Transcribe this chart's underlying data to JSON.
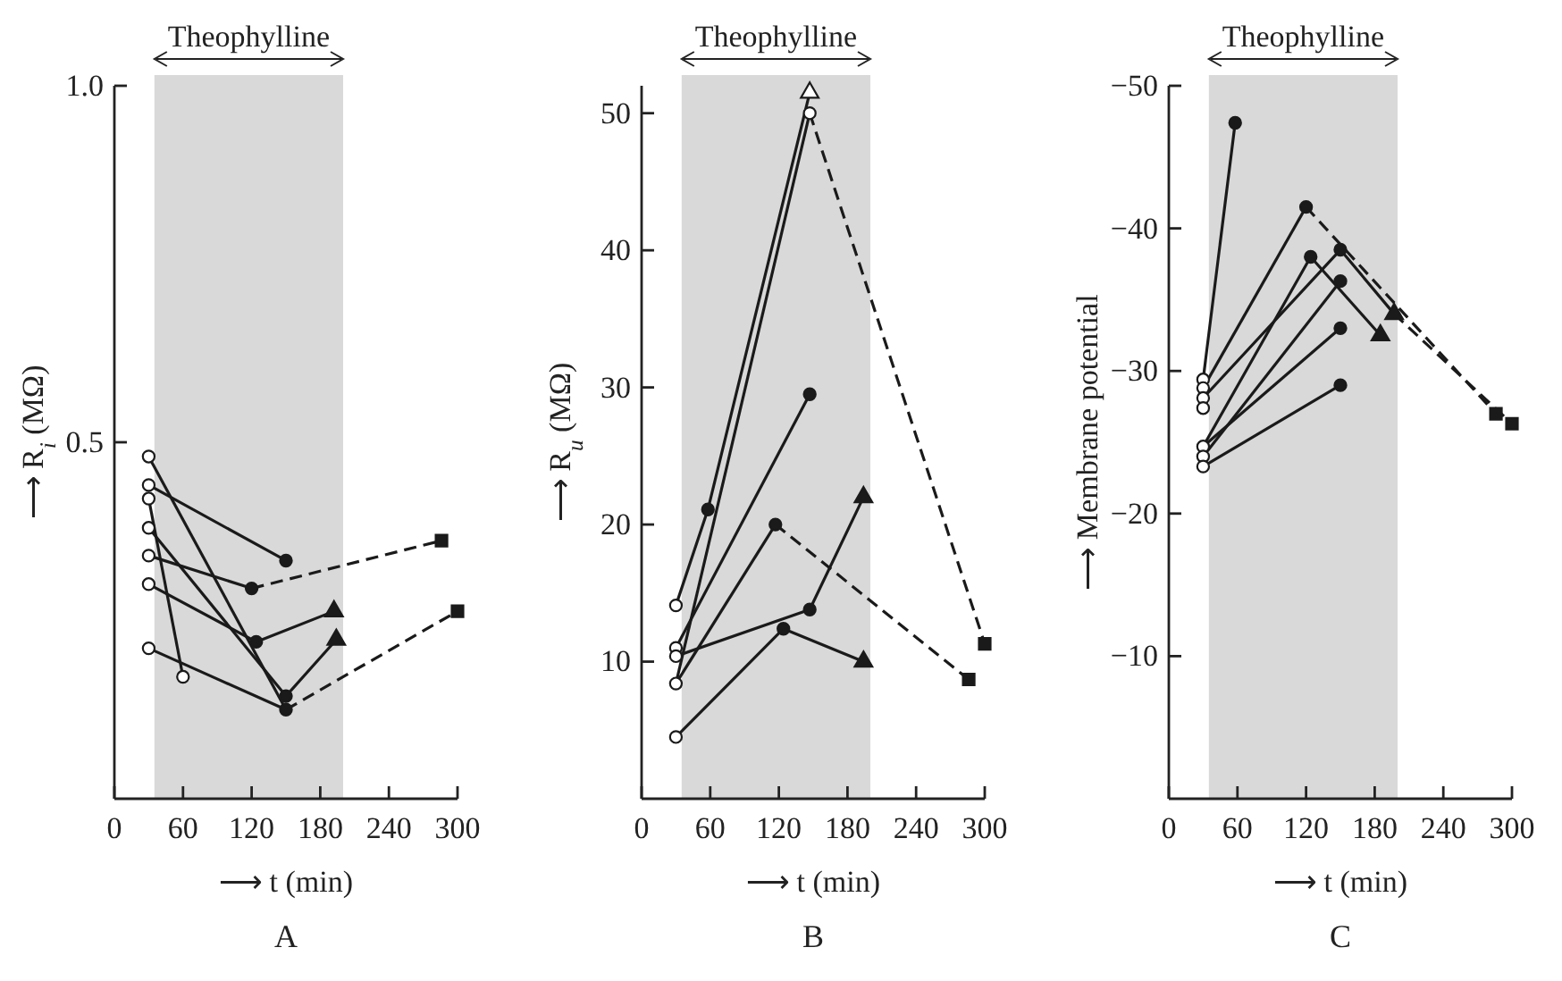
{
  "chart_data": [
    {
      "type": "line",
      "title": "A",
      "xlabel": "⟶ t  (min)",
      "ylabel": "⟶ R$_{i}$  (MΩ)",
      "xlim": [
        0,
        300
      ],
      "xticks": [
        0,
        60,
        120,
        180,
        240,
        300
      ],
      "ylim": [
        0,
        1
      ],
      "yticks": [
        0.5,
        {
          "value": 1,
          "label": "1.0"
        }
      ],
      "marker": "none",
      "line_style": "solid",
      "bands": [
        {
          "axis": "x",
          "from": 35,
          "to": 200,
          "label": "Theophylline",
          "color": "#d9d9d9"
        }
      ],
      "series": [
        {
          "color": "#1a1a1a",
          "x": [
            30,
            150
          ],
          "values": [
            0.44,
            0.334
          ]
        },
        {
          "color": "#1a1a1a",
          "x": [
            30,
            120
          ],
          "values": [
            0.341,
            0.295
          ]
        },
        {
          "color": "#1a1a1a",
          "x": [
            120,
            286
          ],
          "values": [
            0.295,
            0.362
          ],
          "line_style": "dashed"
        },
        {
          "color": "#1a1a1a",
          "x": [
            30,
            124,
            192
          ],
          "values": [
            0.301,
            0.22,
            0.263
          ]
        },
        {
          "color": "#1a1a1a",
          "x": [
            30,
            150
          ],
          "values": [
            0.48,
            0.125
          ]
        },
        {
          "color": "#1a1a1a",
          "x": [
            30,
            60
          ],
          "values": [
            0.421,
            0.171
          ]
        },
        {
          "color": "#1a1a1a",
          "x": [
            30,
            150,
            194
          ],
          "values": [
            0.38,
            0.144,
            0.223
          ]
        },
        {
          "color": "#1a1a1a",
          "x": [
            30,
            150
          ],
          "values": [
            0.211,
            0.125
          ]
        },
        {
          "color": "#1a1a1a",
          "x": [
            150,
            300
          ],
          "values": [
            0.125,
            0.263
          ],
          "line_style": "dashed"
        },
        {
          "type": "scatter",
          "marker": "circle",
          "color": "#ffffff",
          "x": [
            30,
            30,
            30,
            30,
            30,
            30,
            30,
            60
          ],
          "values": [
            0.48,
            0.44,
            0.421,
            0.38,
            0.341,
            0.301,
            0.211,
            0.171
          ]
        },
        {
          "type": "scatter",
          "marker": "circle",
          "color": "#1a1a1a",
          "x": [
            150,
            120,
            124,
            150,
            150
          ],
          "values": [
            0.334,
            0.295,
            0.22,
            0.144,
            0.125
          ]
        },
        {
          "type": "scatter",
          "marker": "triangle",
          "color": "#1a1a1a",
          "x": [
            192,
            194
          ],
          "values": [
            0.263,
            0.223
          ]
        },
        {
          "type": "scatter",
          "marker": "square",
          "color": "#1a1a1a",
          "x": [
            286,
            300
          ],
          "values": [
            0.362,
            0.263
          ]
        }
      ]
    },
    {
      "type": "line",
      "title": "B",
      "xlabel": "⟶ t  (min)",
      "ylabel": "⟶ R$_{u}$  (MΩ)",
      "xlim": [
        0,
        300
      ],
      "xticks": [
        0,
        60,
        120,
        180,
        240,
        300
      ],
      "ylim": [
        0,
        52
      ],
      "yticks": [
        10,
        20,
        30,
        40,
        50
      ],
      "marker": "none",
      "line_style": "solid",
      "bands": [
        {
          "axis": "x",
          "from": 35,
          "to": 200,
          "label": "Theophylline",
          "color": "#d9d9d9"
        }
      ],
      "series": [
        {
          "color": "#1a1a1a",
          "x": [
            30,
            58,
            147
          ],
          "values": [
            14.1,
            21.1,
            51.5
          ]
        },
        {
          "color": "#1a1a1a",
          "x": [
            30,
            147
          ],
          "values": [
            8.4,
            50
          ]
        },
        {
          "color": "#1a1a1a",
          "x": [
            147,
            300
          ],
          "values": [
            50,
            11.3
          ],
          "line_style": "dashed"
        },
        {
          "color": "#1a1a1a",
          "x": [
            30,
            147
          ],
          "values": [
            11,
            29.5
          ]
        },
        {
          "color": "#1a1a1a",
          "x": [
            30,
            117
          ],
          "values": [
            8.4,
            20
          ]
        },
        {
          "color": "#1a1a1a",
          "x": [
            117,
            286
          ],
          "values": [
            20,
            8.7
          ],
          "line_style": "dashed"
        },
        {
          "color": "#1a1a1a",
          "x": [
            30,
            147,
            194
          ],
          "values": [
            10.4,
            13.8,
            22
          ]
        },
        {
          "color": "#1a1a1a",
          "x": [
            30,
            124,
            194
          ],
          "values": [
            4.5,
            12.4,
            10
          ]
        },
        {
          "type": "scatter",
          "marker": "circle",
          "color": "#ffffff",
          "x": [
            30,
            30,
            30,
            30,
            30,
            147
          ],
          "values": [
            14.1,
            11,
            10.4,
            8.4,
            4.5,
            50
          ]
        },
        {
          "type": "scatter",
          "marker": "triangle",
          "color": "#ffffff",
          "x": [
            147
          ],
          "values": [
            51.5
          ]
        },
        {
          "type": "scatter",
          "marker": "circle",
          "color": "#1a1a1a",
          "x": [
            58,
            147,
            117,
            147,
            124
          ],
          "values": [
            21.1,
            29.5,
            20,
            13.8,
            12.4
          ]
        },
        {
          "type": "scatter",
          "marker": "triangle",
          "color": "#1a1a1a",
          "x": [
            194,
            194
          ],
          "values": [
            22,
            10
          ]
        },
        {
          "type": "scatter",
          "marker": "square",
          "color": "#1a1a1a",
          "x": [
            286,
            300
          ],
          "values": [
            8.7,
            11.3
          ]
        }
      ]
    },
    {
      "type": "line",
      "title": "C",
      "xlabel": "⟶ t  (min)",
      "ylabel": "⟶ Membrane potential",
      "xlim": [
        0,
        300
      ],
      "xticks": [
        0,
        60,
        120,
        180,
        240,
        300
      ],
      "ylim": [
        0,
        -50
      ],
      "yticks": [
        {
          "value": -10,
          "label": "−10"
        },
        {
          "value": -20,
          "label": "−20"
        },
        {
          "value": -30,
          "label": "−30"
        },
        {
          "value": -40,
          "label": "−40"
        },
        {
          "value": -50,
          "label": "−50"
        }
      ],
      "marker": "none",
      "line_style": "solid",
      "bands": [
        {
          "axis": "x",
          "from": 35,
          "to": 200,
          "label": "Theophylline",
          "color": "#d9d9d9"
        }
      ],
      "series": [
        {
          "color": "#1a1a1a",
          "x": [
            30,
            58
          ],
          "values": [
            -29.4,
            -47.4
          ]
        },
        {
          "color": "#1a1a1a",
          "x": [
            30,
            120
          ],
          "values": [
            -28.8,
            -41.5
          ]
        },
        {
          "color": "#1a1a1a",
          "x": [
            120,
            286
          ],
          "values": [
            -41.5,
            -27
          ],
          "line_style": "dashed"
        },
        {
          "color": "#1a1a1a",
          "x": [
            30,
            150,
            197
          ],
          "values": [
            -28.1,
            -38.5,
            -34
          ]
        },
        {
          "color": "#1a1a1a",
          "x": [
            197,
            300
          ],
          "values": [
            -34,
            -26.3
          ],
          "line_style": "dashed"
        },
        {
          "color": "#1a1a1a",
          "x": [
            30,
            124,
            185
          ],
          "values": [
            -24.7,
            -38,
            -32.5
          ]
        },
        {
          "color": "#1a1a1a",
          "x": [
            30,
            150
          ],
          "values": [
            -24,
            -36.3
          ]
        },
        {
          "color": "#1a1a1a",
          "x": [
            30,
            150
          ],
          "values": [
            -24.7,
            -33
          ]
        },
        {
          "color": "#1a1a1a",
          "x": [
            30,
            150
          ],
          "values": [
            -23.3,
            -29
          ]
        },
        {
          "type": "scatter",
          "marker": "circle",
          "color": "#ffffff",
          "x": [
            30,
            30,
            30,
            30,
            30,
            30,
            30
          ],
          "values": [
            -29.4,
            -28.8,
            -28.1,
            -27.4,
            -24.7,
            -24,
            -23.3
          ]
        },
        {
          "type": "scatter",
          "marker": "circle",
          "color": "#1a1a1a",
          "x": [
            58,
            120,
            124,
            150,
            150,
            150,
            150
          ],
          "values": [
            -47.4,
            -41.5,
            -38,
            -38.5,
            -36.3,
            -33,
            -29
          ]
        },
        {
          "type": "scatter",
          "marker": "triangle",
          "color": "#1a1a1a",
          "x": [
            185,
            197
          ],
          "values": [
            -32.5,
            -34
          ]
        },
        {
          "type": "scatter",
          "marker": "square",
          "color": "#1a1a1a",
          "x": [
            286,
            300
          ],
          "values": [
            -27,
            -26.3
          ]
        }
      ]
    }
  ]
}
